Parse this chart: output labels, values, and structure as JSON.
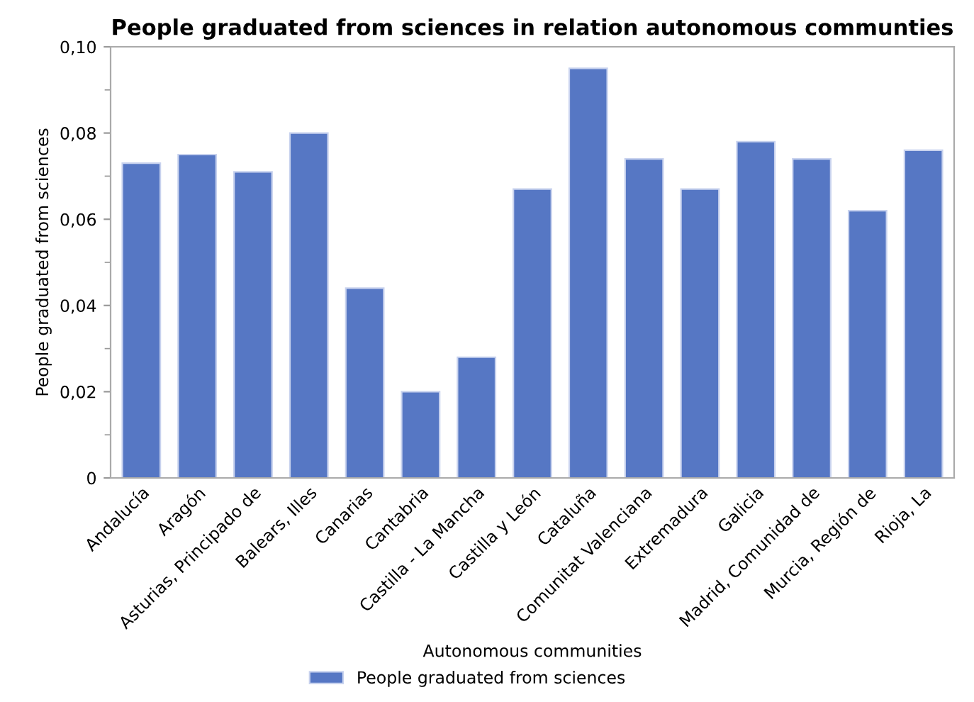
{
  "chart_data": {
    "type": "bar",
    "title": "People graduated from sciences in relation autonomous communties",
    "xlabel": "Autonomous communities",
    "ylabel": "People graduated from sciences",
    "categories": [
      "Andalucía",
      "Aragón",
      "Asturias, Principado de",
      "Balears, Illes",
      "Canarias",
      "Cantabria",
      "Castilla - La Mancha",
      "Castilla y León",
      "Cataluña",
      "Comunitat Valenciana",
      "Extremadura",
      "Galicia",
      "Madrid, Comunidad de",
      "Murcia, Región de",
      "Rioja, La"
    ],
    "series": [
      {
        "name": "People graduated from sciences",
        "color": "#5677c4",
        "values": [
          0.073,
          0.075,
          0.071,
          0.08,
          0.044,
          0.02,
          0.028,
          0.067,
          0.095,
          0.074,
          0.067,
          0.078,
          0.074,
          0.062,
          0.076
        ]
      }
    ],
    "ylim": [
      0,
      0.1
    ],
    "yticks": [
      0,
      {
        "value": 0.02,
        "label": "0,02"
      },
      {
        "value": 0.04,
        "label": "0,04"
      },
      {
        "value": 0.06,
        "label": "0,06"
      },
      {
        "value": 0.08,
        "label": "0,08"
      },
      {
        "value": 0.1,
        "label": "0,10"
      }
    ],
    "grid": false,
    "legend": "bottom"
  }
}
